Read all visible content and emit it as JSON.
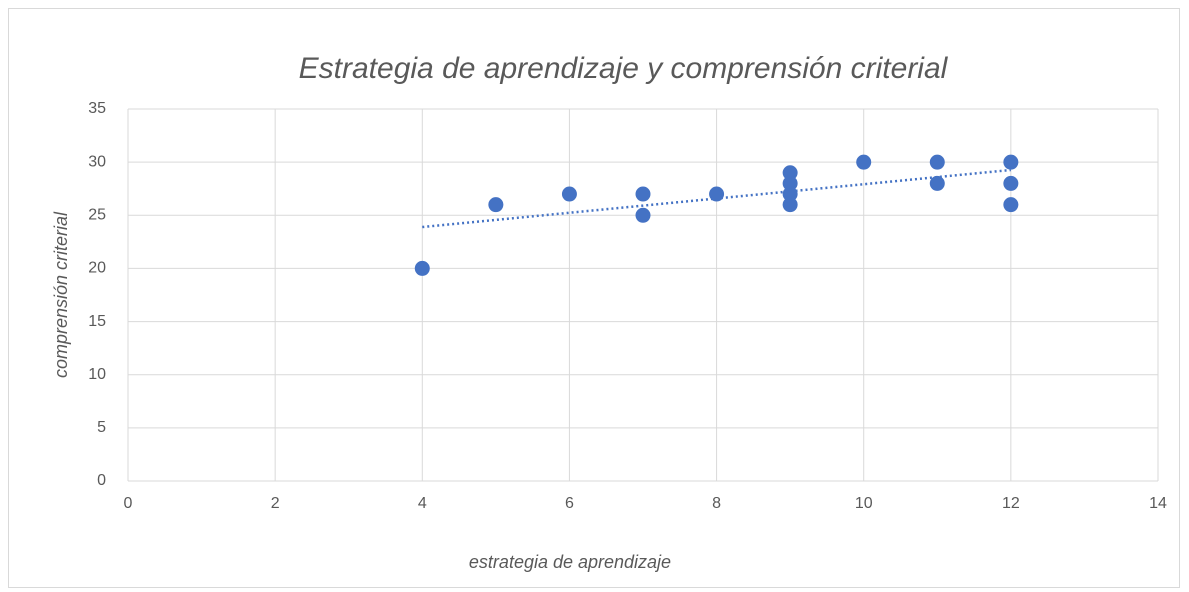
{
  "chart_data": {
    "type": "scatter",
    "title": "Estrategia de aprendizaje y comprensión criterial",
    "x_label": "estrategia de aprendizaje",
    "y_label": "comprensión criterial",
    "series": [
      {
        "color": "#4472c4",
        "x": [
          4,
          5,
          6,
          7,
          7,
          8,
          9,
          9,
          9,
          9,
          10,
          11,
          11,
          12,
          12,
          12
        ],
        "values": [
          20,
          26,
          27,
          27,
          25,
          27,
          29,
          28,
          27,
          26,
          30,
          30,
          28,
          30,
          28,
          26
        ]
      }
    ],
    "trendline": true,
    "xlim": [
      0,
      14
    ],
    "xticks": [
      0,
      2,
      4,
      6,
      8,
      10,
      12,
      14
    ],
    "ylim": [
      0,
      35
    ],
    "yticks": [
      0,
      5,
      10,
      15,
      20,
      25,
      30,
      35
    ],
    "grid": true
  }
}
